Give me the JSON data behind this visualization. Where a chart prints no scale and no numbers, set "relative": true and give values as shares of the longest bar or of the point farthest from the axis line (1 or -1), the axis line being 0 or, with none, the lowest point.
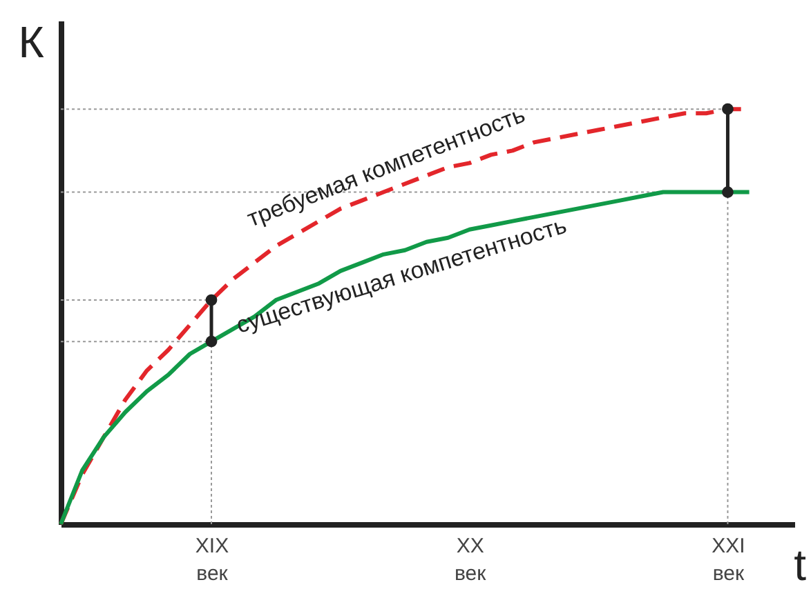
{
  "chart_data": {
    "type": "line",
    "relative": true,
    "xlabel": "t",
    "ylabel": "К",
    "categories": [
      null,
      null,
      null,
      null,
      null,
      null,
      null,
      "XIX век",
      null,
      null,
      null,
      null,
      null,
      null,
      null,
      null,
      null,
      null,
      null,
      "XX век",
      null,
      null,
      null,
      null,
      null,
      null,
      null,
      null,
      null,
      null,
      null,
      "XXI век",
      null
    ],
    "tick_labels": "x",
    "grid": false,
    "legend": false,
    "series": [
      {
        "name": "требуемая компетентность",
        "color": "#e3262b",
        "line_style": "dashed",
        "marker": "none",
        "values": [
          0,
          0.12,
          0.21,
          0.3,
          0.37,
          0.42,
          0.48,
          0.54,
          0.59,
          0.63,
          0.67,
          0.7,
          0.73,
          0.76,
          0.78,
          0.8,
          0.82,
          0.84,
          0.86,
          0.87,
          0.89,
          0.9,
          0.92,
          0.93,
          0.94,
          0.95,
          0.96,
          0.97,
          0.98,
          0.99,
          0.99,
          1,
          1
        ]
      },
      {
        "name": "существующая компетентность",
        "color": "#119a48",
        "line_style": "solid",
        "marker": "none",
        "values": [
          0,
          0.13,
          0.21,
          0.27,
          0.32,
          0.36,
          0.41,
          0.44,
          0.47,
          0.5,
          0.54,
          0.56,
          0.58,
          0.61,
          0.63,
          0.65,
          0.66,
          0.68,
          0.69,
          0.71,
          0.72,
          0.73,
          0.74,
          0.75,
          0.76,
          0.77,
          0.78,
          0.79,
          0.8,
          0.8,
          0.8,
          0.8,
          0.8
        ]
      },
      {
        "color": "#222222",
        "line_style": "solid",
        "marker": "circle",
        "x": [
          "XIX век",
          "XIX век"
        ],
        "values": [
          0.44,
          0.54
        ]
      },
      {
        "color": "#222222",
        "line_style": "solid",
        "marker": "circle",
        "x": [
          "XXI век",
          "XXI век"
        ],
        "values": [
          0.8,
          1
        ]
      }
    ],
    "ref_lines": [
      {
        "axis": "x",
        "value": "XIX век",
        "color": "#999999",
        "line_style": "dotted"
      },
      {
        "axis": "x",
        "value": "XXI век",
        "color": "#999999",
        "line_style": "dotted"
      },
      {
        "axis": "y",
        "value": 0.44,
        "color": "#999999",
        "line_style": "dotted"
      },
      {
        "axis": "y",
        "value": 0.54,
        "color": "#999999",
        "line_style": "dotted"
      },
      {
        "axis": "y",
        "value": 0.8,
        "color": "#999999",
        "line_style": "dotted"
      },
      {
        "axis": "y",
        "value": 1,
        "color": "#999999",
        "line_style": "dotted"
      }
    ]
  }
}
